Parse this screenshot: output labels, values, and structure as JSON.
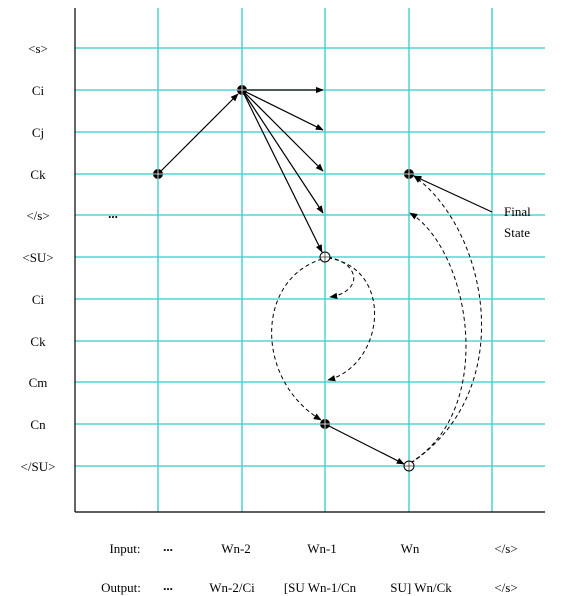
{
  "row_labels": [
    "<s>",
    "Ci",
    "Cj",
    "Ck",
    "</s>",
    "<SU>",
    "Ci",
    "Ck",
    "Cm",
    "Cn",
    "</SU>"
  ],
  "ellipsis": "...",
  "final_state_label": [
    "Final",
    "State"
  ],
  "input_row": {
    "label": "Input:",
    "ellipsis": "...",
    "items": [
      "Wn-2",
      "Wn-1",
      "Wn",
      "</s>"
    ]
  },
  "output_row": {
    "label": "Output:",
    "ellipsis": "...",
    "items": [
      "Wn-2/Ci",
      "[SU Wn-1/Cn",
      "SU] Wn/Ck",
      "</s>"
    ]
  }
}
